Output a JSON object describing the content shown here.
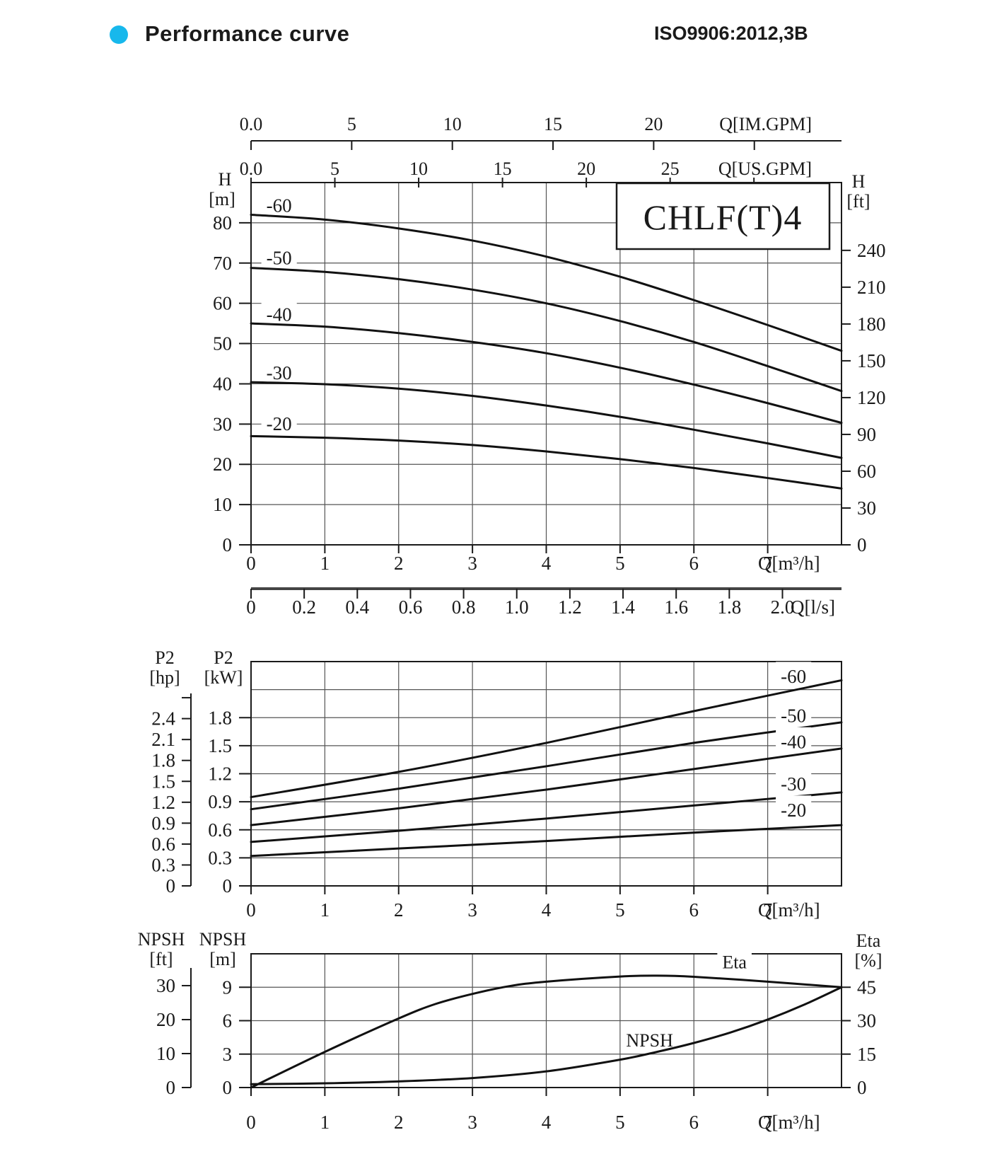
{
  "header": {
    "title": "Performance curve",
    "standard": "ISO9906:2012,3B",
    "bullet_color": "#17b8ec"
  },
  "chart_data": [
    {
      "id": "head",
      "type": "line",
      "model_box_label": "CHLF(T)4",
      "x_axis": {
        "range": [
          0,
          8
        ],
        "ticks": [
          "0",
          "1",
          "2",
          "3",
          "4",
          "5",
          "6",
          "7"
        ],
        "tick_values": [
          0,
          1,
          2,
          3,
          4,
          5,
          6,
          7
        ],
        "label": "Q[m³/h]"
      },
      "im_gpm_axis": {
        "label": "Q[IM.GPM]",
        "units_per_m3h": 3.6662,
        "tick_labels": [
          "0.0",
          "5",
          "10",
          "15",
          "20"
        ],
        "tick_values": [
          0,
          5,
          10,
          15,
          20
        ],
        "extra_ticks": [
          25
        ]
      },
      "us_gpm_axis": {
        "label": "Q[US.GPM]",
        "units_per_m3h": 4.4029,
        "tick_labels": [
          "0.0",
          "5",
          "10",
          "15",
          "20",
          "25"
        ],
        "tick_values": [
          0,
          5,
          10,
          15,
          20,
          25
        ],
        "extra_ticks": [
          30
        ]
      },
      "ls_axis": {
        "label": "Q[l/s]",
        "units_per_m3h": 0.27778,
        "tick_labels": [
          "0",
          "0.2",
          "0.4",
          "0.6",
          "0.8",
          "1.0",
          "1.2",
          "1.4",
          "1.6",
          "1.8",
          "2.0"
        ],
        "tick_values": [
          0,
          0.2,
          0.4,
          0.6,
          0.8,
          1.0,
          1.2,
          1.4,
          1.6,
          1.8,
          2.0
        ]
      },
      "y_left": {
        "name": "H",
        "unit": "[m]",
        "range": [
          0,
          90
        ],
        "tick_labels": [
          "0",
          "10",
          "20",
          "30",
          "40",
          "50",
          "60",
          "70",
          "80"
        ],
        "tick_values": [
          0,
          10,
          20,
          30,
          40,
          50,
          60,
          70,
          80
        ],
        "grid_values": [
          10,
          20,
          30,
          40,
          50,
          60,
          70,
          80
        ]
      },
      "y_right": {
        "name": "H",
        "unit": "[ft]",
        "tick_labels": [
          "0",
          "30",
          "60",
          "90",
          "120",
          "150",
          "180",
          "210",
          "240"
        ],
        "tick_values": [
          0,
          30,
          60,
          90,
          120,
          150,
          180,
          210,
          240
        ],
        "m_per_unit": 0.3048
      },
      "series": [
        {
          "name": "-20",
          "points": [
            [
              0,
              27.0
            ],
            [
              1,
              26.6
            ],
            [
              2,
              25.9
            ],
            [
              3,
              24.8
            ],
            [
              4,
              23.2
            ],
            [
              5,
              21.3
            ],
            [
              6,
              19.1
            ],
            [
              7,
              16.6
            ],
            [
              8,
              14.0
            ]
          ]
        },
        {
          "name": "-30",
          "points": [
            [
              0,
              40.4
            ],
            [
              1,
              39.9
            ],
            [
              2,
              38.8
            ],
            [
              3,
              37.0
            ],
            [
              4,
              34.6
            ],
            [
              5,
              31.8
            ],
            [
              6,
              28.6
            ],
            [
              7,
              25.2
            ],
            [
              8,
              21.6
            ]
          ]
        },
        {
          "name": "-40",
          "points": [
            [
              0,
              55.0
            ],
            [
              1,
              54.2
            ],
            [
              2,
              52.6
            ],
            [
              3,
              50.4
            ],
            [
              4,
              47.6
            ],
            [
              5,
              44.0
            ],
            [
              6,
              39.8
            ],
            [
              7,
              35.2
            ],
            [
              8,
              30.3
            ]
          ]
        },
        {
          "name": "-50",
          "points": [
            [
              0,
              68.8
            ],
            [
              1,
              67.8
            ],
            [
              2,
              66.0
            ],
            [
              3,
              63.4
            ],
            [
              4,
              60.0
            ],
            [
              5,
              55.6
            ],
            [
              6,
              50.4
            ],
            [
              7,
              44.4
            ],
            [
              8,
              38.2
            ]
          ]
        },
        {
          "name": "-60",
          "points": [
            [
              0,
              82.0
            ],
            [
              1,
              80.8
            ],
            [
              2,
              78.6
            ],
            [
              3,
              75.6
            ],
            [
              4,
              71.6
            ],
            [
              5,
              66.6
            ],
            [
              6,
              60.8
            ],
            [
              7,
              54.6
            ],
            [
              8,
              48.2
            ]
          ]
        }
      ],
      "series_labels": [
        {
          "text": "-60",
          "x": 0.38,
          "y": 84.0
        },
        {
          "text": "-50",
          "x": 0.38,
          "y": 71.0
        },
        {
          "text": "-40",
          "x": 0.38,
          "y": 57.0
        },
        {
          "text": "-30",
          "x": 0.38,
          "y": 42.5
        },
        {
          "text": "-20",
          "x": 0.38,
          "y": 29.8
        }
      ]
    },
    {
      "id": "power",
      "type": "line",
      "x_axis": {
        "range": [
          0,
          8
        ],
        "ticks": [
          "0",
          "1",
          "2",
          "3",
          "4",
          "5",
          "6",
          "7"
        ],
        "tick_values": [
          0,
          1,
          2,
          3,
          4,
          5,
          6,
          7
        ],
        "label": "Q[m³/h]"
      },
      "y_left": {
        "name": "P2",
        "unit": "[kW]",
        "range": [
          0,
          2.4
        ],
        "tick_labels": [
          "0",
          "0.3",
          "0.6",
          "0.9",
          "1.2",
          "1.5",
          "1.8"
        ],
        "tick_values": [
          0,
          0.3,
          0.6,
          0.9,
          1.2,
          1.5,
          1.8
        ],
        "grid_values": [
          0.3,
          0.6,
          0.9,
          1.2,
          1.5,
          1.8,
          2.1
        ]
      },
      "hp_ruler": {
        "name": "P2",
        "unit": "[hp]",
        "tick_labels": [
          "0",
          "0.3",
          "0.6",
          "0.9",
          "1.2",
          "1.5",
          "1.8",
          "2.1",
          "2.4"
        ],
        "tick_values": [
          0,
          0.3,
          0.6,
          0.9,
          1.2,
          1.5,
          1.8,
          2.1,
          2.4
        ],
        "extra_ticks": [
          2.7
        ],
        "kw_per_unit": 0.7457
      },
      "series": [
        {
          "name": "-20",
          "points": [
            [
              0,
              0.32
            ],
            [
              2,
              0.4
            ],
            [
              4,
              0.48
            ],
            [
              6,
              0.57
            ],
            [
              8,
              0.65
            ]
          ]
        },
        {
          "name": "-30",
          "points": [
            [
              0,
              0.47
            ],
            [
              2,
              0.59
            ],
            [
              4,
              0.72
            ],
            [
              6,
              0.86
            ],
            [
              8,
              1.0
            ]
          ]
        },
        {
          "name": "-40",
          "points": [
            [
              0,
              0.65
            ],
            [
              2,
              0.83
            ],
            [
              4,
              1.03
            ],
            [
              6,
              1.25
            ],
            [
              8,
              1.47
            ]
          ]
        },
        {
          "name": "-50",
          "points": [
            [
              0,
              0.82
            ],
            [
              2,
              1.04
            ],
            [
              4,
              1.28
            ],
            [
              6,
              1.53
            ],
            [
              8,
              1.75
            ]
          ]
        },
        {
          "name": "-60",
          "points": [
            [
              0,
              0.95
            ],
            [
              2,
              1.22
            ],
            [
              4,
              1.53
            ],
            [
              6,
              1.87
            ],
            [
              8,
              2.2
            ]
          ]
        }
      ],
      "series_labels": [
        {
          "text": "-60",
          "x": 7.35,
          "y": 2.23
        },
        {
          "text": "-50",
          "x": 7.35,
          "y": 1.81
        },
        {
          "text": "-40",
          "x": 7.35,
          "y": 1.53
        },
        {
          "text": "-30",
          "x": 7.35,
          "y": 1.08
        },
        {
          "text": "-20",
          "x": 7.35,
          "y": 0.8
        }
      ]
    },
    {
      "id": "npsh",
      "type": "line",
      "x_axis": {
        "range": [
          0,
          8
        ],
        "ticks": [
          "0",
          "1",
          "2",
          "3",
          "4",
          "5",
          "6",
          "7"
        ],
        "tick_values": [
          0,
          1,
          2,
          3,
          4,
          5,
          6,
          7
        ],
        "label": "Q[m³/h]"
      },
      "y_left": {
        "name": "NPSH",
        "unit": "[m]",
        "range": [
          0,
          12
        ],
        "tick_labels": [
          "0",
          "3",
          "6",
          "9"
        ],
        "tick_values": [
          0,
          3,
          6,
          9
        ],
        "grid_values": [
          3,
          6,
          9
        ]
      },
      "ft_ruler": {
        "name": "NPSH",
        "unit": "[ft]",
        "tick_labels": [
          "0",
          "10",
          "20",
          "30"
        ],
        "tick_values": [
          0,
          10,
          20,
          30
        ],
        "m_per_unit": 0.3048
      },
      "y_right": {
        "name": "Eta",
        "unit": "[%]",
        "tick_labels": [
          "0",
          "15",
          "30",
          "45"
        ],
        "tick_values": [
          0,
          15,
          30,
          45
        ],
        "m_per_percent": 0.2
      },
      "series": [
        {
          "name": "Eta",
          "axis": "percent",
          "points": [
            [
              0,
              0
            ],
            [
              1,
              16
            ],
            [
              2,
              31
            ],
            [
              2.5,
              37.5
            ],
            [
              3,
              42
            ],
            [
              3.5,
              45.5
            ],
            [
              4,
              47.5
            ],
            [
              5,
              49.8
            ],
            [
              5.5,
              50.2
            ],
            [
              6,
              49.7
            ],
            [
              7,
              47.5
            ],
            [
              8,
              45
            ]
          ]
        },
        {
          "name": "NPSH",
          "axis": "m",
          "points": [
            [
              0,
              0.3
            ],
            [
              1,
              0.38
            ],
            [
              2,
              0.55
            ],
            [
              3,
              0.85
            ],
            [
              4,
              1.45
            ],
            [
              5,
              2.5
            ],
            [
              5.5,
              3.2
            ],
            [
              6,
              4.0
            ],
            [
              6.5,
              4.95
            ],
            [
              7,
              6.1
            ],
            [
              7.5,
              7.45
            ],
            [
              8,
              9.0
            ]
          ]
        }
      ],
      "series_labels": [
        {
          "text": "Eta",
          "x": 6.55,
          "y_m": 11.15
        },
        {
          "text": "NPSH",
          "x": 5.4,
          "y_m": 4.15
        }
      ]
    }
  ]
}
